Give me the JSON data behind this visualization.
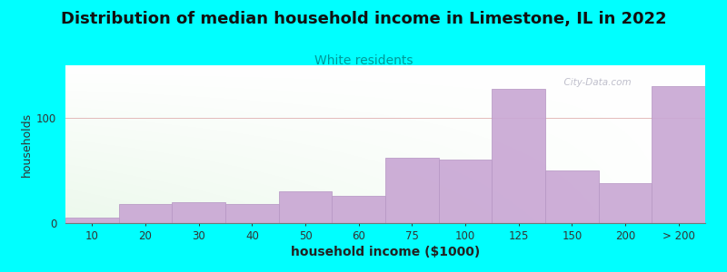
{
  "title": "Distribution of median household income in Limestone, IL in 2022",
  "subtitle": "White residents",
  "xlabel": "household income ($1000)",
  "ylabel": "households",
  "bar_labels": [
    "10",
    "20",
    "30",
    "40",
    "50",
    "60",
    "75",
    "100",
    "125",
    "150",
    "200",
    "> 200"
  ],
  "bar_left_edges": [
    0,
    1,
    2,
    3,
    4,
    5,
    6,
    7,
    8,
    9,
    10,
    11
  ],
  "bar_values": [
    5,
    18,
    20,
    18,
    30,
    26,
    62,
    60,
    128,
    50,
    38,
    130
  ],
  "bar_color": "#c9a8d4",
  "bar_edge_color": "#b899c5",
  "background_outer": "#00ffff",
  "title_fontsize": 13,
  "subtitle_fontsize": 10,
  "subtitle_color": "#009999",
  "ylabel_fontsize": 9,
  "xlabel_fontsize": 10,
  "tick_fontsize": 8.5,
  "yticks": [
    0,
    100
  ],
  "ymax": 150,
  "watermark": "  City-Data.com",
  "watermark_color": "#aaaabb"
}
